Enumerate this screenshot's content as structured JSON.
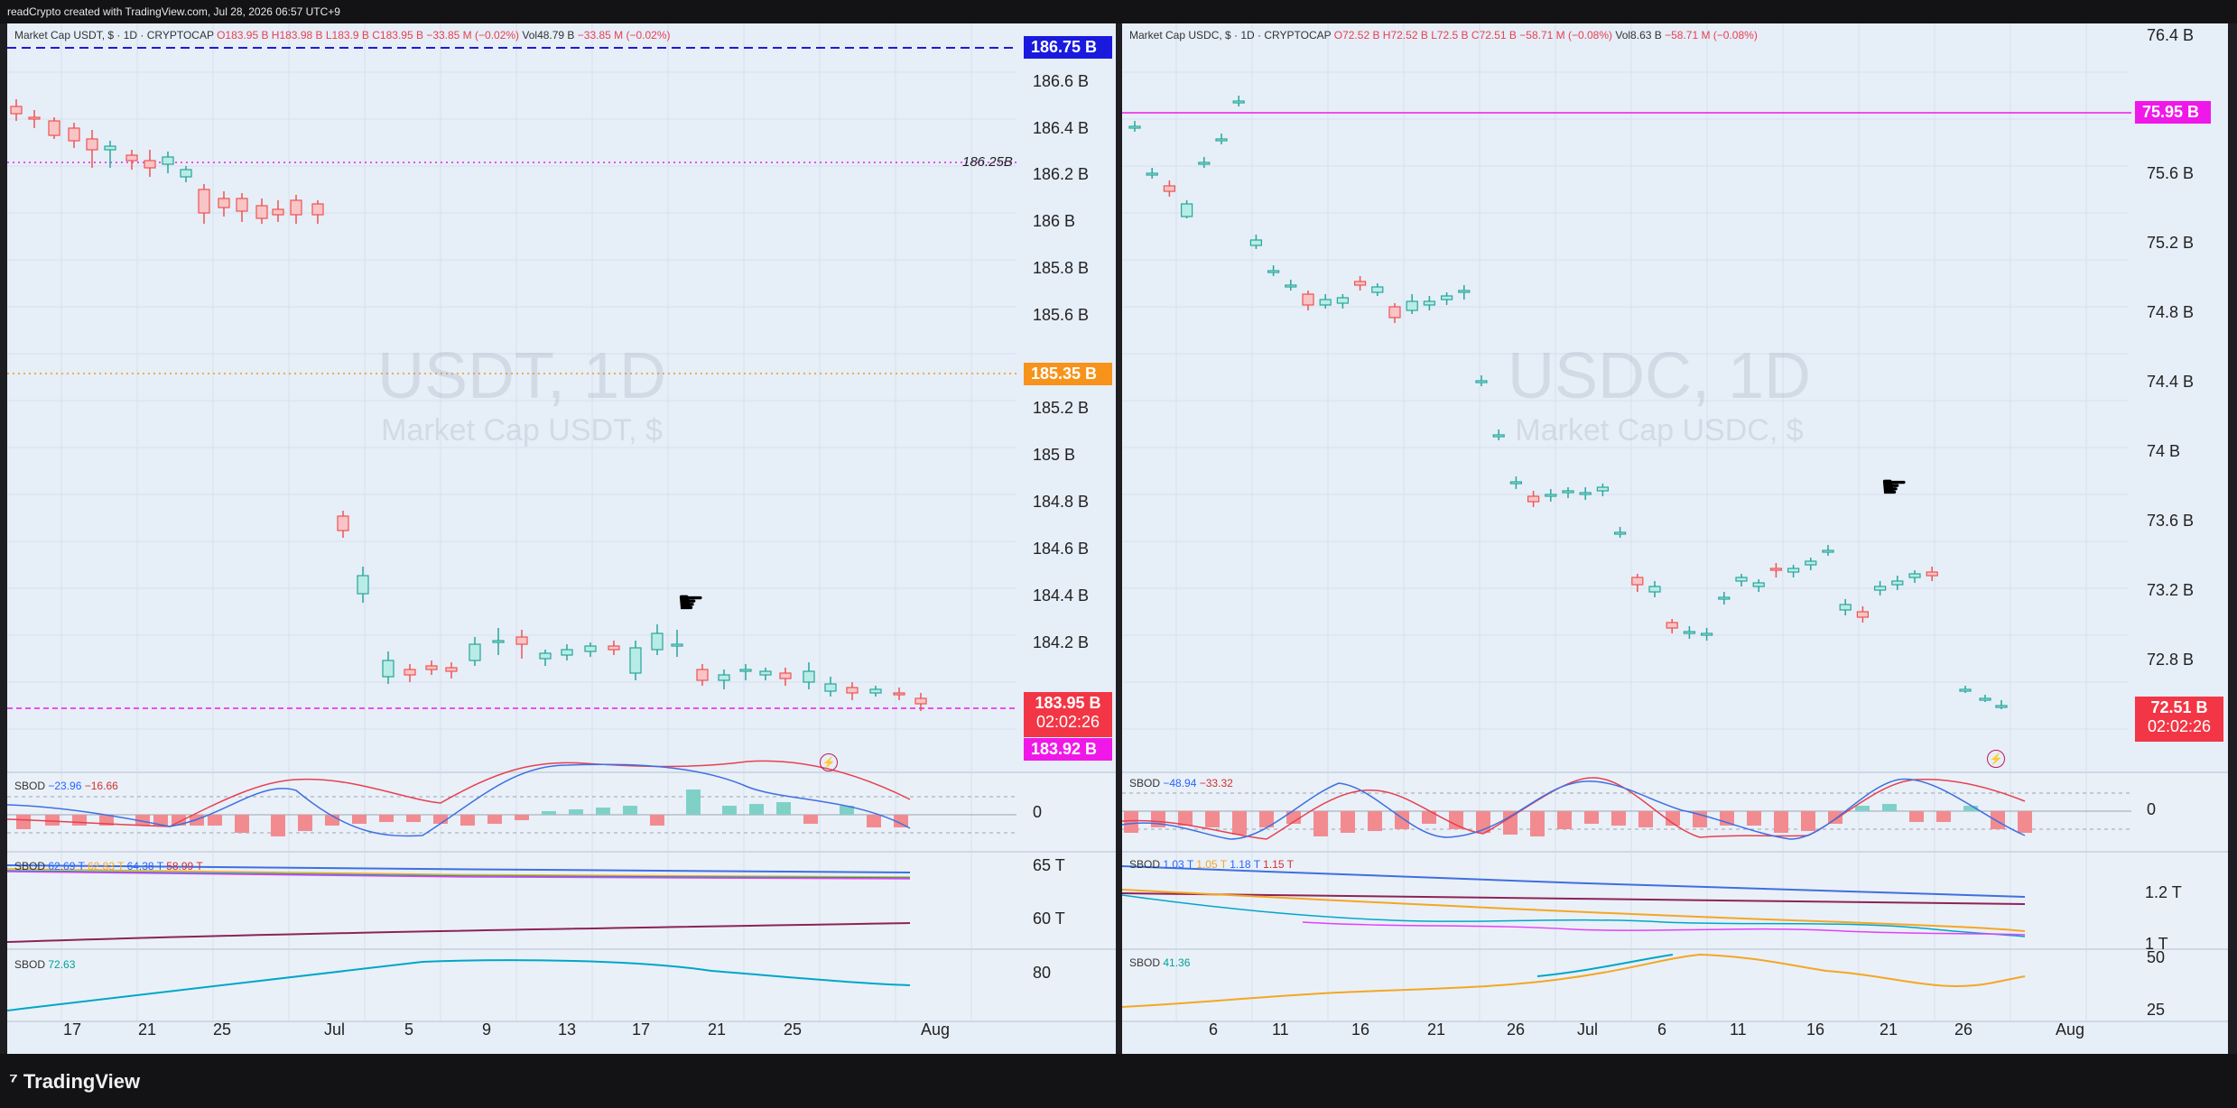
{
  "app": {
    "attribution": "readCrypto created with TradingView.com, Jul 28, 2026 06:57 UTC+9",
    "brand": "TradingView"
  },
  "left": {
    "legend": {
      "title": "Market Cap USDT, $ · 1D · CRYPTOCAP",
      "o": "O183.95 B",
      "h": "H183.98 B",
      "l": "L183.9 B",
      "c": "C183.95 B",
      "chg": "−33.85 M (−0.02%)",
      "vol": "Vol48.79 B",
      "volchg": "−33.85 M (−0.02%)"
    },
    "watermark": {
      "symbol": "USDT, 1D",
      "name": "Market Cap USDT, $"
    },
    "yaxis": [
      "186.6 B",
      "186.4 B",
      "186.2 B",
      "186 B",
      "185.8 B",
      "185.6 B",
      "185.2 B",
      "185 B",
      "184.8 B",
      "184.6 B",
      "184.4 B",
      "184.2 B"
    ],
    "price_tags": {
      "high_line": "186.75 B",
      "level": "185.35 B",
      "current": "183.95 B",
      "countdown": "02:02:26",
      "low_line": "183.92 B",
      "dotted_label": "186.25B"
    },
    "sbod1": {
      "name": "SBOD",
      "v1": "−23.96",
      "v2": "−16.66",
      "axis": "0"
    },
    "sbod2": {
      "name": "SBOD",
      "v1": "62.69 T",
      "v2": "62.83 T",
      "v3": "64.38 T",
      "v4": "58.99 T",
      "axis": [
        "65 T",
        "60 T"
      ]
    },
    "sbod3": {
      "name": "SBOD",
      "v1": "72.63",
      "axis": "80"
    },
    "xaxis": [
      "17",
      "21",
      "25",
      "Jul",
      "5",
      "9",
      "13",
      "17",
      "21",
      "25",
      "Aug"
    ]
  },
  "right": {
    "legend": {
      "title": "Market Cap USDC, $ · 1D · CRYPTOCAP",
      "o": "O72.52 B",
      "h": "H72.52 B",
      "l": "L72.5 B",
      "c": "C72.51 B",
      "chg": "−58.71 M (−0.08%)",
      "vol": "Vol8.63 B",
      "volchg": "−58.71 M (−0.08%)"
    },
    "watermark": {
      "symbol": "USDC, 1D",
      "name": "Market Cap USDC, $"
    },
    "yaxis": [
      "76.4 B",
      "75.6 B",
      "75.2 B",
      "74.8 B",
      "74.4 B",
      "74 B",
      "73.6 B",
      "73.2 B",
      "72.8 B"
    ],
    "price_tags": {
      "high_line": "75.95 B",
      "current": "72.51 B",
      "countdown": "02:02:26"
    },
    "sbod1": {
      "name": "SBOD",
      "v1": "−48.94",
      "v2": "−33.32",
      "axis": "0"
    },
    "sbod2": {
      "name": "SBOD",
      "v1": "1.03 T",
      "v2": "1.05 T",
      "v3": "1.18 T",
      "v4": "1.15 T",
      "axis": [
        "1.2 T",
        "1 T"
      ]
    },
    "sbod3": {
      "name": "SBOD",
      "v1": "41.36",
      "axis": [
        "50",
        "25"
      ]
    },
    "xaxis": [
      "6",
      "11",
      "16",
      "21",
      "26",
      "Jul",
      "6",
      "11",
      "16",
      "21",
      "26",
      "Aug"
    ]
  },
  "colors": {
    "up": "#26a69a",
    "down": "#ef5350",
    "blue_tag": "#1a1adf",
    "orange_tag": "#f7931a",
    "magenta_tag": "#f018e8",
    "red_tag": "#f23645"
  }
}
